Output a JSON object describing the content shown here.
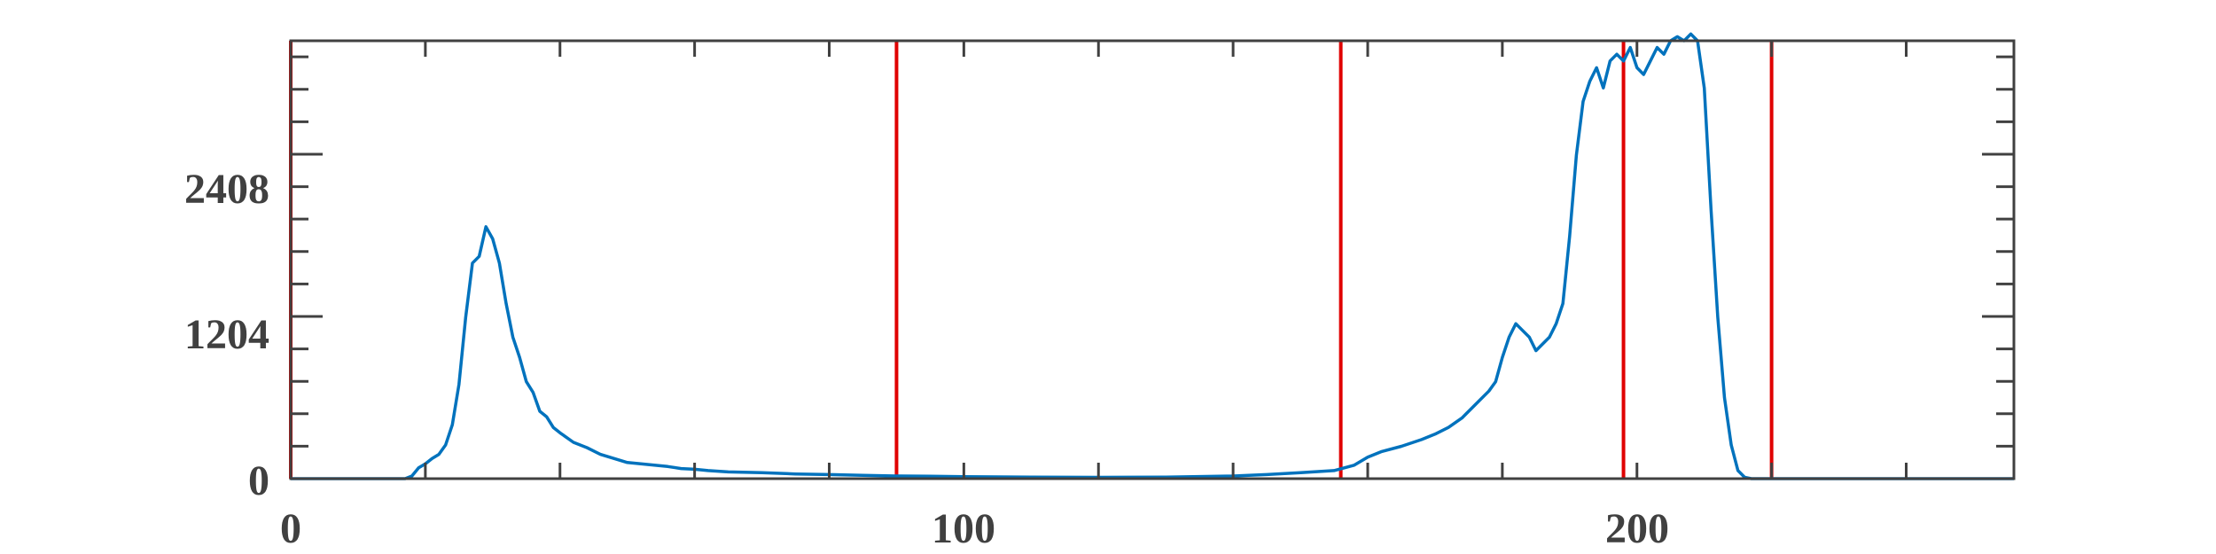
{
  "chart_data": {
    "type": "line",
    "title": "",
    "xlabel": "",
    "ylabel": "",
    "xlim": [
      0,
      256
    ],
    "ylim": [
      0,
      3250
    ],
    "x_ticks": [
      0,
      100,
      200
    ],
    "x_tick_labels": [
      "0",
      "100",
      "200"
    ],
    "x_minor_step": 20,
    "y_ticks": [
      0,
      1204,
      2408
    ],
    "y_tick_labels": [
      "0",
      "1204",
      "2408"
    ],
    "y_minor_step": 240.8,
    "grid": false,
    "threshold_lines": [
      0,
      90,
      156,
      198,
      220
    ],
    "colors": {
      "series": "#0072BD",
      "threshold": "#E00000",
      "axes": "#404040"
    },
    "series": [
      {
        "x": [
          0,
          17,
          18,
          19,
          20,
          21,
          22,
          23,
          24,
          25,
          26,
          27,
          28,
          29,
          30,
          31,
          32,
          33,
          34,
          35,
          36,
          37,
          38,
          39,
          40,
          42,
          44,
          46,
          48,
          50,
          52,
          54,
          56,
          58,
          60,
          62,
          65,
          70,
          75,
          80,
          85,
          90,
          95,
          100,
          110,
          120,
          130,
          140,
          145,
          150,
          155,
          158,
          160,
          162,
          165,
          168,
          170,
          172,
          174,
          176,
          178,
          179,
          180,
          181,
          182,
          183,
          184,
          185,
          186,
          187,
          188,
          189,
          190,
          191,
          192,
          193,
          194,
          195,
          196,
          197,
          198,
          199,
          200,
          201,
          202,
          203,
          204,
          205,
          206,
          207,
          208,
          209,
          210,
          211,
          212,
          213,
          214,
          215,
          216,
          217,
          218,
          219,
          220,
          221,
          256
        ],
        "y": [
          0,
          0,
          20,
          80,
          110,
          150,
          180,
          250,
          400,
          700,
          1200,
          1600,
          1650,
          1870,
          1780,
          1600,
          1300,
          1050,
          900,
          720,
          640,
          500,
          460,
          380,
          340,
          270,
          230,
          180,
          150,
          120,
          110,
          100,
          90,
          75,
          70,
          60,
          50,
          45,
          35,
          30,
          25,
          20,
          18,
          15,
          12,
          10,
          12,
          20,
          30,
          45,
          60,
          100,
          160,
          200,
          240,
          290,
          330,
          380,
          450,
          550,
          650,
          720,
          900,
          1050,
          1150,
          1100,
          1050,
          950,
          1000,
          1050,
          1150,
          1300,
          1800,
          2400,
          2800,
          2950,
          3050,
          2900,
          3100,
          3150,
          3100,
          3200,
          3050,
          3000,
          3100,
          3200,
          3150,
          3250,
          3280,
          3250,
          3300,
          3250,
          2900,
          2000,
          1200,
          600,
          250,
          60,
          10,
          0,
          0,
          0,
          0,
          0,
          0
        ]
      }
    ]
  }
}
